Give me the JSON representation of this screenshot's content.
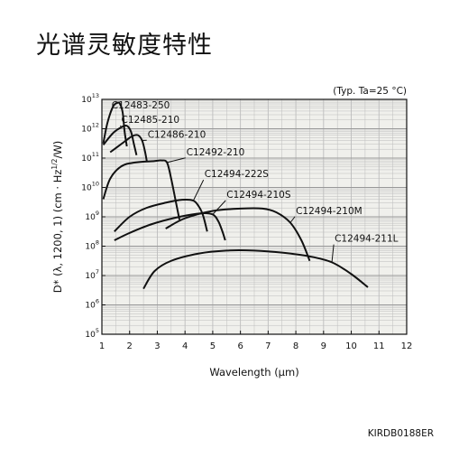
{
  "page": {
    "title": "光谱灵敏度特性",
    "figure_code": "KIRDB0188ER"
  },
  "chart_data": {
    "type": "line",
    "title": "",
    "condition": "(Typ. Ta=25 °C)",
    "xlabel": "Wavelength (μm)",
    "ylabel": "D* (λ, 1200, 1) (cm · Hz^1/2/W)",
    "xscale": "linear",
    "yscale": "log",
    "xlim": [
      1,
      12
    ],
    "ylim_exponent": [
      5,
      13
    ],
    "x_ticks": [
      1,
      2,
      3,
      4,
      5,
      6,
      7,
      8,
      9,
      10,
      11,
      12
    ],
    "y_ticks": [
      {
        "base": "10",
        "exp": "5"
      },
      {
        "base": "10",
        "exp": "6"
      },
      {
        "base": "10",
        "exp": "7"
      },
      {
        "base": "10",
        "exp": "8"
      },
      {
        "base": "10",
        "exp": "9"
      },
      {
        "base": "10",
        "exp": "10"
      },
      {
        "base": "10",
        "exp": "11"
      },
      {
        "base": "10",
        "exp": "12"
      },
      {
        "base": "10",
        "exp": "13"
      }
    ],
    "grid": true,
    "colors": {
      "line": "#111111",
      "grid": "#bdbdbd",
      "background": "#f0f0ec"
    },
    "series": [
      {
        "name": "C12483-250",
        "label_at": [
          1.35,
          12.7
        ],
        "points": [
          [
            1.05,
            11.5
          ],
          [
            1.2,
            12.2
          ],
          [
            1.4,
            12.75
          ],
          [
            1.55,
            12.88
          ],
          [
            1.65,
            12.85
          ],
          [
            1.75,
            12.55
          ],
          [
            1.82,
            11.9
          ],
          [
            1.9,
            11.4
          ]
        ]
      },
      {
        "name": "C12485-210",
        "label_at": [
          1.7,
          12.2
        ],
        "points": [
          [
            1.05,
            11.45
          ],
          [
            1.4,
            11.85
          ],
          [
            1.7,
            12.05
          ],
          [
            1.9,
            12.1
          ],
          [
            2.05,
            11.9
          ],
          [
            2.15,
            11.5
          ],
          [
            2.25,
            11.1
          ]
        ]
      },
      {
        "name": "C12486-210",
        "label_at": [
          2.65,
          11.7
        ],
        "points": [
          [
            1.3,
            11.2
          ],
          [
            1.8,
            11.55
          ],
          [
            2.1,
            11.75
          ],
          [
            2.3,
            11.78
          ],
          [
            2.45,
            11.6
          ],
          [
            2.55,
            11.25
          ],
          [
            2.62,
            10.9
          ]
        ]
      },
      {
        "name": "C12492-210",
        "label_at": [
          4.05,
          11.1
        ],
        "points": [
          [
            1.05,
            9.6
          ],
          [
            1.3,
            10.3
          ],
          [
            1.7,
            10.72
          ],
          [
            2.2,
            10.85
          ],
          [
            2.9,
            10.9
          ],
          [
            3.15,
            10.92
          ],
          [
            3.35,
            10.85
          ],
          [
            3.5,
            10.3
          ],
          [
            3.65,
            9.6
          ],
          [
            3.8,
            8.9
          ]
        ]
      },
      {
        "name": "C12494-222S",
        "label_at": [
          4.7,
          10.35
        ],
        "points": [
          [
            1.45,
            8.5
          ],
          [
            2.0,
            9.0
          ],
          [
            2.6,
            9.3
          ],
          [
            3.3,
            9.48
          ],
          [
            3.9,
            9.58
          ],
          [
            4.3,
            9.55
          ],
          [
            4.5,
            9.35
          ],
          [
            4.65,
            9.05
          ],
          [
            4.8,
            8.5
          ]
        ]
      },
      {
        "name": "C12494-210S",
        "label_at": [
          5.5,
          9.65
        ],
        "points": [
          [
            1.45,
            8.2
          ],
          [
            2.0,
            8.45
          ],
          [
            2.8,
            8.75
          ],
          [
            3.8,
            9.0
          ],
          [
            4.6,
            9.12
          ],
          [
            5.0,
            9.08
          ],
          [
            5.2,
            8.85
          ],
          [
            5.35,
            8.5
          ],
          [
            5.45,
            8.2
          ]
        ]
      },
      {
        "name": "C12494-210M",
        "label_at": [
          8.0,
          9.1
        ],
        "points": [
          [
            3.3,
            8.6
          ],
          [
            4.0,
            8.95
          ],
          [
            5.0,
            9.2
          ],
          [
            6.0,
            9.28
          ],
          [
            6.8,
            9.28
          ],
          [
            7.3,
            9.15
          ],
          [
            7.8,
            8.8
          ],
          [
            8.2,
            8.2
          ],
          [
            8.5,
            7.5
          ]
        ]
      },
      {
        "name": "C12494-211L",
        "label_at": [
          9.4,
          8.15
        ],
        "points": [
          [
            2.5,
            6.55
          ],
          [
            2.9,
            7.15
          ],
          [
            3.5,
            7.5
          ],
          [
            4.5,
            7.75
          ],
          [
            5.5,
            7.85
          ],
          [
            6.5,
            7.85
          ],
          [
            7.5,
            7.78
          ],
          [
            8.5,
            7.65
          ],
          [
            9.3,
            7.45
          ],
          [
            10.0,
            7.05
          ],
          [
            10.6,
            6.6
          ]
        ]
      }
    ]
  }
}
